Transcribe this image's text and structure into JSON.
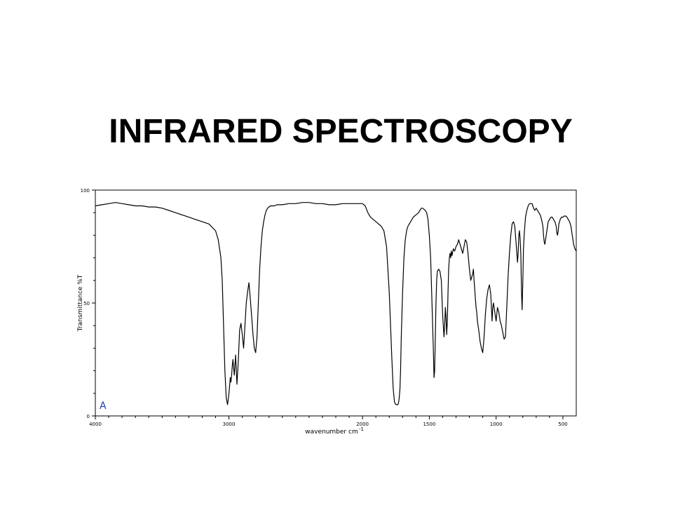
{
  "slide": {
    "title": "INFRARED SPECTROSCOPY"
  },
  "chart_data": {
    "type": "line",
    "title": "",
    "xlabel": "wavenumber cm",
    "xlabel_superscript": "-1",
    "ylabel": "Transmittance %T",
    "xlim": [
      4000,
      400
    ],
    "ylim": [
      0,
      100
    ],
    "x_ticks": [
      4000,
      3000,
      2000,
      1500,
      1000,
      500
    ],
    "y_ticks": [
      0,
      50,
      100
    ],
    "panel_label": "A",
    "line_color": "#000000",
    "series": [
      {
        "x": [
          4000,
          3950,
          3900,
          3850,
          3800,
          3750,
          3700,
          3650,
          3600,
          3550,
          3500,
          3450,
          3400,
          3350,
          3300,
          3250,
          3200,
          3150,
          3100,
          3080,
          3060,
          3050,
          3040,
          3030,
          3020,
          3010,
          3000,
          2990,
          2985,
          2980,
          2975,
          2970,
          2960,
          2950,
          2940,
          2930,
          2920,
          2910,
          2900,
          2890,
          2880,
          2870,
          2860,
          2850,
          2840,
          2830,
          2820,
          2810,
          2800,
          2790,
          2780,
          2770,
          2760,
          2750,
          2740,
          2730,
          2720,
          2710,
          2700,
          2690,
          2680,
          2660,
          2640,
          2620,
          2600,
          2550,
          2500,
          2450,
          2400,
          2350,
          2300,
          2250,
          2200,
          2150,
          2100,
          2050,
          2000,
          1980,
          1960,
          1940,
          1920,
          1900,
          1880,
          1860,
          1840,
          1820,
          1800,
          1790,
          1780,
          1770,
          1760,
          1750,
          1745,
          1740,
          1735,
          1730,
          1725,
          1720,
          1715,
          1710,
          1700,
          1690,
          1680,
          1670,
          1660,
          1650,
          1640,
          1630,
          1620,
          1610,
          1600,
          1590,
          1580,
          1570,
          1560,
          1550,
          1540,
          1530,
          1520,
          1510,
          1500,
          1490,
          1480,
          1470,
          1465,
          1460,
          1455,
          1450,
          1445,
          1440,
          1430,
          1420,
          1410,
          1400,
          1390,
          1385,
          1380,
          1375,
          1370,
          1365,
          1360,
          1355,
          1350,
          1345,
          1340,
          1335,
          1330,
          1320,
          1310,
          1300,
          1290,
          1280,
          1270,
          1260,
          1250,
          1240,
          1230,
          1220,
          1210,
          1200,
          1190,
          1180,
          1175,
          1170,
          1165,
          1160,
          1155,
          1150,
          1145,
          1140,
          1130,
          1120,
          1110,
          1100,
          1090,
          1080,
          1070,
          1060,
          1050,
          1045,
          1040,
          1035,
          1030,
          1025,
          1020,
          1010,
          1000,
          990,
          980,
          970,
          960,
          950,
          940,
          930,
          920,
          910,
          900,
          890,
          880,
          870,
          860,
          850,
          840,
          835,
          830,
          825,
          820,
          815,
          810,
          805,
          800,
          795,
          790,
          785,
          780,
          770,
          760,
          750,
          740,
          730,
          720,
          710,
          700,
          690,
          680,
          670,
          660,
          650,
          645,
          640,
          635,
          630,
          620,
          610,
          600,
          590,
          580,
          570,
          560,
          550,
          545,
          540,
          535,
          530,
          520,
          510,
          500,
          490,
          480,
          470,
          460,
          450,
          440,
          430,
          420,
          410,
          400
        ],
        "y": [
          93,
          93.5,
          94,
          94.5,
          94,
          93.5,
          93,
          93,
          92.5,
          92.5,
          92,
          91,
          90,
          89,
          88,
          87,
          86,
          85,
          82,
          78,
          70,
          60,
          40,
          20,
          8,
          5,
          10,
          17,
          15,
          18,
          22,
          25,
          18,
          27,
          14,
          24,
          38,
          41,
          36,
          30,
          40,
          50,
          55,
          59,
          52,
          44,
          36,
          30,
          28,
          35,
          50,
          65,
          75,
          82,
          86,
          89,
          91,
          92,
          92.5,
          93,
          93,
          93,
          93.5,
          93.5,
          93.5,
          94,
          94,
          94.5,
          94.5,
          94,
          94,
          93.5,
          93.5,
          94,
          94,
          94,
          94,
          93,
          90,
          88,
          87,
          86,
          85,
          84,
          82,
          75,
          55,
          40,
          25,
          12,
          6,
          5,
          5,
          5,
          5,
          6,
          8,
          12,
          20,
          35,
          55,
          70,
          78,
          82,
          84,
          85,
          86,
          87,
          88,
          88.5,
          89,
          89.5,
          90,
          91,
          92,
          92,
          91.5,
          91,
          90,
          87,
          80,
          70,
          50,
          30,
          17,
          20,
          35,
          50,
          60,
          64,
          65,
          64,
          60,
          45,
          35,
          40,
          48,
          44,
          36,
          42,
          55,
          65,
          70,
          72,
          70,
          73,
          71,
          74,
          73,
          75,
          76,
          78,
          76,
          74,
          72,
          75,
          78,
          77,
          72,
          65,
          60,
          62,
          63,
          65,
          60,
          56,
          52,
          48,
          46,
          42,
          38,
          33,
          30,
          28,
          35,
          45,
          52,
          56,
          58,
          56,
          54,
          48,
          42,
          48,
          50,
          46,
          42,
          48,
          46,
          42,
          40,
          37,
          34,
          35,
          48,
          62,
          72,
          80,
          85,
          86,
          84,
          76,
          68,
          72,
          80,
          82,
          78,
          72,
          55,
          47,
          60,
          74,
          80,
          84,
          88,
          91,
          93,
          94,
          94,
          94,
          92,
          91,
          92,
          91,
          90,
          89,
          87,
          84,
          80,
          77,
          76,
          78,
          82,
          86,
          87,
          88,
          88,
          87,
          86,
          84,
          81,
          80,
          82,
          85,
          87,
          88,
          88,
          88.5,
          88.5,
          88,
          87,
          86,
          84,
          80,
          76,
          74,
          73
        ]
      }
    ]
  }
}
